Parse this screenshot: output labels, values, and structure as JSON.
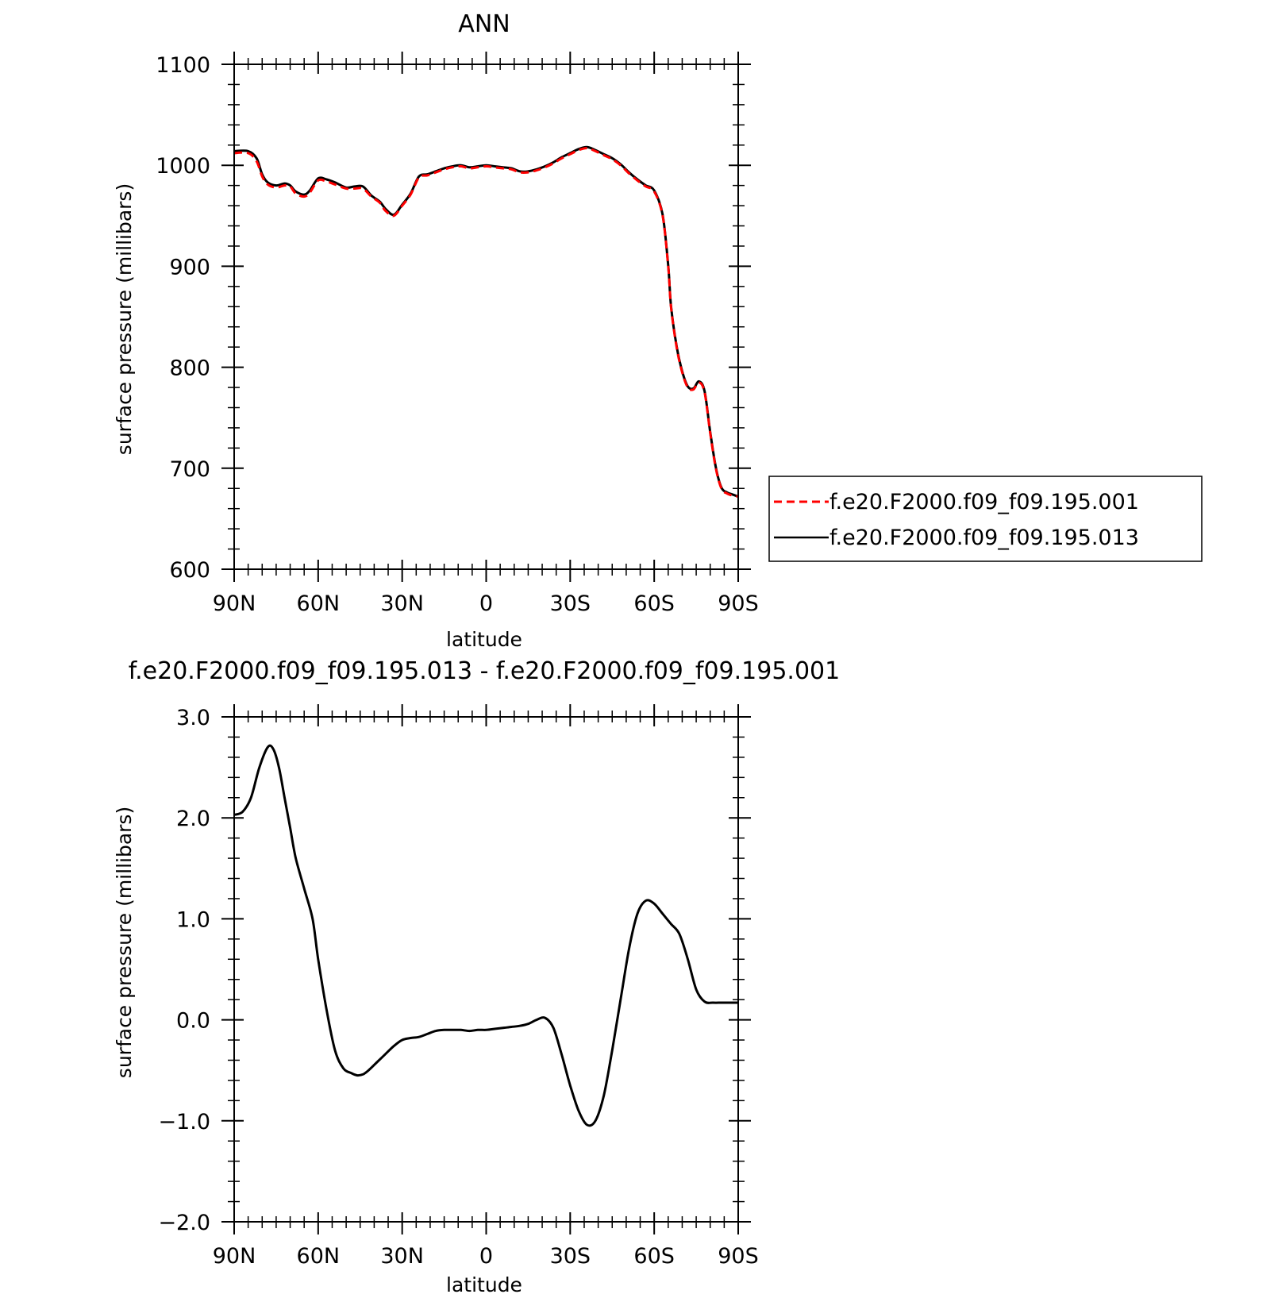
{
  "chart_data": [
    {
      "type": "line",
      "title": "ANN",
      "xlabel": "latitude",
      "ylabel": "surface pressure (millibars)",
      "xlim": [
        -90,
        90
      ],
      "ylim": [
        600,
        1100
      ],
      "x_ticks": [
        -90,
        -60,
        -30,
        0,
        30,
        60,
        90
      ],
      "x_tick_labels": [
        "90N",
        "60N",
        "30N",
        "0",
        "30S",
        "60S",
        "90S"
      ],
      "y_ticks": [
        600,
        700,
        800,
        900,
        1000,
        1100
      ],
      "y_tick_labels": [
        "600",
        "700",
        "800",
        "900",
        "1000",
        "1100"
      ],
      "legend_position": "right",
      "series": [
        {
          "name": "f.e20.F2000.f09_f09.195.001",
          "color": "#ff0000",
          "dash": "dashed",
          "x": [
            -90,
            -85,
            -82,
            -80,
            -78,
            -75,
            -72,
            -70,
            -68,
            -65,
            -63,
            -60,
            -57,
            -54,
            -50,
            -47,
            -44,
            -41,
            -38,
            -36,
            -33,
            -30,
            -27,
            -24,
            -21,
            -18,
            -15,
            -12,
            -9,
            -6,
            -3,
            0,
            3,
            6,
            9,
            12,
            15,
            18,
            21,
            24,
            27,
            30,
            33,
            36,
            39,
            42,
            45,
            48,
            51,
            54,
            57,
            60,
            63,
            65,
            66,
            68,
            70,
            72,
            74,
            76,
            78,
            80,
            82,
            84,
            86,
            88,
            90
          ],
          "y": [
            1012,
            1012,
            1004,
            989,
            981,
            978,
            980,
            979,
            972,
            969,
            973,
            985,
            984,
            981,
            977,
            977,
            977,
            969,
            963,
            955,
            950,
            960,
            971,
            988,
            990,
            993,
            996,
            998,
            999,
            997,
            998,
            999,
            998,
            997,
            996,
            993,
            993,
            995,
            998,
            1002,
            1007,
            1011,
            1015,
            1017,
            1014,
            1010,
            1006,
            1000,
            992,
            985,
            979,
            974,
            950,
            900,
            860,
            820,
            795,
            780,
            778,
            785,
            775,
            735,
            700,
            680,
            675,
            673,
            672
          ]
        },
        {
          "name": "f.e20.F2000.f09_f09.195.013",
          "color": "#000000",
          "dash": "solid",
          "x": [
            -90,
            -85,
            -82,
            -80,
            -78,
            -75,
            -72,
            -70,
            -68,
            -65,
            -63,
            -60,
            -57,
            -54,
            -50,
            -47,
            -44,
            -41,
            -38,
            -36,
            -33,
            -30,
            -27,
            -24,
            -21,
            -18,
            -15,
            -12,
            -9,
            -6,
            -3,
            0,
            3,
            6,
            9,
            12,
            15,
            18,
            21,
            24,
            27,
            30,
            33,
            36,
            39,
            42,
            45,
            48,
            51,
            54,
            57,
            60,
            63,
            65,
            66,
            68,
            70,
            72,
            74,
            76,
            78,
            80,
            82,
            84,
            86,
            88,
            90
          ],
          "y": [
            1014,
            1014,
            1007,
            991,
            983,
            980,
            982,
            980,
            974,
            971,
            975,
            987,
            986,
            983,
            978,
            979,
            979,
            970,
            964,
            957,
            951,
            961,
            972,
            989,
            991,
            994,
            997,
            999,
            1000,
            998,
            999,
            1000,
            999,
            998,
            997,
            994,
            994,
            996,
            999,
            1003,
            1008,
            1012,
            1016,
            1018,
            1015,
            1011,
            1007,
            1001,
            993,
            986,
            980,
            975,
            951,
            901,
            861,
            821,
            796,
            781,
            779,
            786,
            776,
            736,
            701,
            681,
            676,
            674,
            672
          ]
        }
      ]
    },
    {
      "type": "line",
      "title": "f.e20.F2000.f09_f09.195.013 - f.e20.F2000.f09_f09.195.001",
      "xlabel": "latitude",
      "ylabel": "surface pressure (millibars)",
      "xlim": [
        -90,
        90
      ],
      "ylim": [
        -2.0,
        3.0
      ],
      "x_ticks": [
        -90,
        -60,
        -30,
        0,
        30,
        60,
        90
      ],
      "x_tick_labels": [
        "90N",
        "60N",
        "30N",
        "0",
        "30S",
        "60S",
        "90S"
      ],
      "y_ticks": [
        -2.0,
        -1.0,
        0.0,
        1.0,
        2.0,
        3.0
      ],
      "y_tick_labels": [
        "−2.0",
        "−1.0",
        "0.0",
        "1.0",
        "2.0",
        "3.0"
      ],
      "series": [
        {
          "color": "#000000",
          "dash": "solid",
          "x": [
            -90,
            -87,
            -84,
            -81,
            -78,
            -76,
            -74,
            -72,
            -70,
            -68,
            -65,
            -62,
            -60,
            -57,
            -54,
            -51,
            -48,
            -46,
            -44,
            -42,
            -39,
            -36,
            -33,
            -30,
            -27,
            -24,
            -21,
            -18,
            -15,
            -12,
            -9,
            -6,
            -3,
            0,
            3,
            6,
            9,
            12,
            15,
            18,
            21,
            24,
            27,
            30,
            33,
            36,
            39,
            42,
            45,
            48,
            51,
            54,
            57,
            60,
            63,
            66,
            69,
            72,
            75,
            78,
            81,
            84,
            87,
            90
          ],
          "y": [
            2.03,
            2.06,
            2.2,
            2.5,
            2.7,
            2.68,
            2.5,
            2.2,
            1.9,
            1.6,
            1.3,
            1.0,
            0.6,
            0.1,
            -0.3,
            -0.48,
            -0.53,
            -0.55,
            -0.54,
            -0.5,
            -0.42,
            -0.34,
            -0.26,
            -0.2,
            -0.18,
            -0.17,
            -0.14,
            -0.11,
            -0.1,
            -0.1,
            -0.1,
            -0.11,
            -0.1,
            -0.1,
            -0.09,
            -0.08,
            -0.07,
            -0.06,
            -0.04,
            0.0,
            0.02,
            -0.08,
            -0.35,
            -0.65,
            -0.9,
            -1.04,
            -1.0,
            -0.75,
            -0.3,
            0.2,
            0.7,
            1.05,
            1.18,
            1.15,
            1.05,
            0.95,
            0.85,
            0.6,
            0.3,
            0.18,
            0.17,
            0.17,
            0.17,
            0.17
          ]
        }
      ]
    }
  ]
}
